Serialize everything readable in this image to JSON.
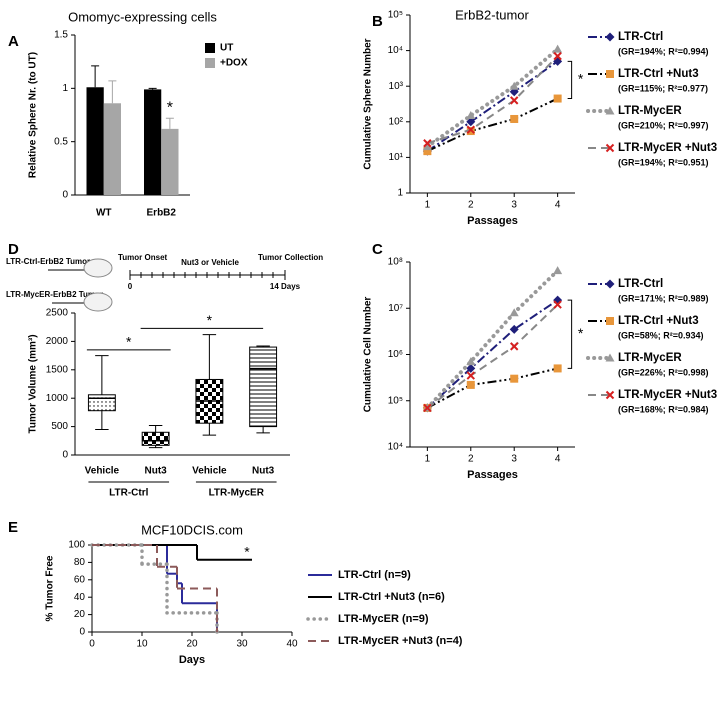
{
  "chart_data": [
    {
      "type": "bar",
      "panel": "A",
      "title": "Omomyc-expressing cells",
      "y_label": "Relative Sphere Nr. (to UT)",
      "categories": [
        "WT",
        "ErbB2"
      ],
      "series": [
        {
          "name": "UT",
          "color": "#000000",
          "values": [
            1.01,
            0.99
          ],
          "errors": [
            0.2,
            0.01
          ]
        },
        {
          "name": "+DOX",
          "color": "#a6a6a6",
          "values": [
            0.86,
            0.62
          ],
          "errors": [
            0.21,
            0.1
          ]
        }
      ],
      "ylim": [
        0,
        1.5
      ],
      "yticks": [
        0,
        0.5,
        1,
        1.5
      ],
      "annotations": [
        "*"
      ],
      "legend": "upper right"
    },
    {
      "type": "line",
      "panel": "B",
      "title": "ErbB2-tumor",
      "y_label": "Cumulative Sphere Number",
      "x_label": "Passages",
      "x": [
        1,
        2,
        3,
        4
      ],
      "xlim": [
        0.6,
        4.4
      ],
      "xticks": [
        1,
        2,
        3,
        4
      ],
      "log_y": true,
      "ylim": [
        1,
        100000
      ],
      "yticks": [
        {
          "value": 1,
          "label": "1"
        },
        {
          "value": 10,
          "label": "10¹"
        },
        {
          "value": 100,
          "label": "10²"
        },
        {
          "value": 1000,
          "label": "10³"
        },
        {
          "value": 10000,
          "label": "10⁴"
        },
        {
          "value": 100000,
          "label": "10⁵"
        }
      ],
      "series": [
        {
          "name": "LTR-Ctrl",
          "stats": "(GR=194%; R²=0.994)",
          "color": "#1f1f7a",
          "marker_color": "#1f1f7a",
          "marker": "diamond",
          "dash": "dashdot",
          "values": [
            15,
            100,
            700,
            5000
          ]
        },
        {
          "name": "LTR-Ctrl +Nut3",
          "stats": "(GR=115%; R²=0.977)",
          "color": "#000000",
          "marker_color": "#e8963a",
          "marker": "square",
          "dash": "dashdotdot",
          "values": [
            15,
            55,
            120,
            450
          ]
        },
        {
          "name": "LTR-MycER",
          "stats": "(GR=210%; R²=0.997)",
          "color": "#999999",
          "marker_color": "#999999",
          "marker": "triangle",
          "dash": "dotted",
          "values": [
            20,
            150,
            1000,
            11000
          ]
        },
        {
          "name": "LTR-MycER +Nut3",
          "stats": "(GR=194%; R²=0.951)",
          "color": "#888888",
          "marker_color": "#d62020",
          "marker": "cross",
          "dash": "dashed",
          "values": [
            25,
            60,
            400,
            7000
          ]
        }
      ],
      "annotations": [
        "*"
      ],
      "legend": "right"
    },
    {
      "type": "line",
      "panel": "C",
      "y_label": "Cumulative Cell Number",
      "x_label": "Passages",
      "x": [
        1,
        2,
        3,
        4
      ],
      "xlim": [
        0.6,
        4.4
      ],
      "xticks": [
        1,
        2,
        3,
        4
      ],
      "log_y": true,
      "ylim": [
        10000,
        100000000
      ],
      "yticks": [
        {
          "value": 10000,
          "label": "10⁴"
        },
        {
          "value": 100000,
          "label": "10⁵"
        },
        {
          "value": 1000000,
          "label": "10⁶"
        },
        {
          "value": 10000000,
          "label": "10⁷"
        },
        {
          "value": 100000000,
          "label": "10⁸"
        }
      ],
      "series": [
        {
          "name": "LTR-Ctrl",
          "stats": "(GR=171%; R²=0.989)",
          "color": "#1f1f7a",
          "marker_color": "#1f1f7a",
          "marker": "diamond",
          "dash": "dashdot",
          "values": [
            70000,
            500000,
            3500000,
            15000000
          ]
        },
        {
          "name": "LTR-Ctrl +Nut3",
          "stats": "(GR=58%; R²=0.934)",
          "color": "#000000",
          "marker_color": "#e8963a",
          "marker": "square",
          "dash": "dashdotdot",
          "values": [
            70000,
            220000,
            300000,
            500000
          ]
        },
        {
          "name": "LTR-MycER",
          "stats": "(GR=226%; R²=0.998)",
          "color": "#999999",
          "marker_color": "#999999",
          "marker": "triangle",
          "dash": "dotted",
          "values": [
            70000,
            700000,
            8000000,
            65000000
          ]
        },
        {
          "name": "LTR-MycER +Nut3",
          "stats": "(GR=168%; R²=0.984)",
          "color": "#888888",
          "marker_color": "#d62020",
          "marker": "cross",
          "dash": "dashed",
          "values": [
            70000,
            350000,
            1500000,
            12000000
          ]
        }
      ],
      "annotations": [
        "*"
      ],
      "legend": "right"
    },
    {
      "type": "box",
      "panel": "D",
      "y_label": "Tumor Volume (mm³)",
      "categories": [
        "Vehicle",
        "Nut3",
        "Vehicle",
        "Nut3"
      ],
      "groups": [
        "LTR-Ctrl",
        "LTR-MycER"
      ],
      "boxes": [
        [
          450,
          780,
          1000,
          1060,
          1750
        ],
        [
          130,
          170,
          250,
          400,
          520
        ],
        [
          350,
          560,
          950,
          1330,
          2120
        ],
        [
          390,
          500,
          1520,
          1900,
          1920
        ]
      ],
      "patterns": [
        "dots",
        "checker",
        "checker",
        "hlines"
      ],
      "ylim": [
        0,
        2500
      ],
      "yticks": [
        0,
        500,
        1000,
        1500,
        2000,
        2500
      ],
      "annotations": [
        "*",
        "*"
      ],
      "schematic": {
        "labels": [
          "LTR-Ctrl-ErbB2 Tumor",
          "LTR-MycER-ErbB2 Tumor"
        ],
        "timeline": [
          "Tumor Onset",
          "Nut3 or Vehicle",
          "Tumor Collection"
        ],
        "start": "0",
        "end": "14 Days"
      }
    },
    {
      "type": "step",
      "panel": "E",
      "title": "MCF10DCIS.com",
      "y_label": "% Tumor Free",
      "x_label": "Days",
      "xlim": [
        0,
        40
      ],
      "xticks": [
        0,
        10,
        20,
        30,
        40
      ],
      "ylim": [
        0,
        100
      ],
      "yticks": [
        0,
        20,
        40,
        60,
        80,
        100
      ],
      "series": [
        {
          "name": "LTR-Ctrl (n=9)",
          "color": "#2b2b9a",
          "dash": "solid",
          "x": [
            0,
            15,
            17,
            18,
            25
          ],
          "values": [
            100,
            67,
            56,
            33,
            0
          ]
        },
        {
          "name": "LTR-Ctrl +Nut3 (n=6)",
          "color": "#000000",
          "dash": "solid",
          "x": [
            0,
            21,
            32
          ],
          "values": [
            100,
            83,
            83
          ]
        },
        {
          "name": "LTR-MycER (n=9)",
          "color": "#999999",
          "dash": "dotted",
          "x": [
            0,
            10,
            15,
            25
          ],
          "values": [
            100,
            78,
            22,
            0
          ]
        },
        {
          "name": "LTR-MycER +Nut3 (n=4)",
          "color": "#8c5a5a",
          "dash": "dashed",
          "x": [
            0,
            13,
            17,
            25
          ],
          "values": [
            100,
            75,
            50,
            0
          ]
        }
      ],
      "annotations": [
        "*"
      ],
      "legend": "right"
    }
  ]
}
